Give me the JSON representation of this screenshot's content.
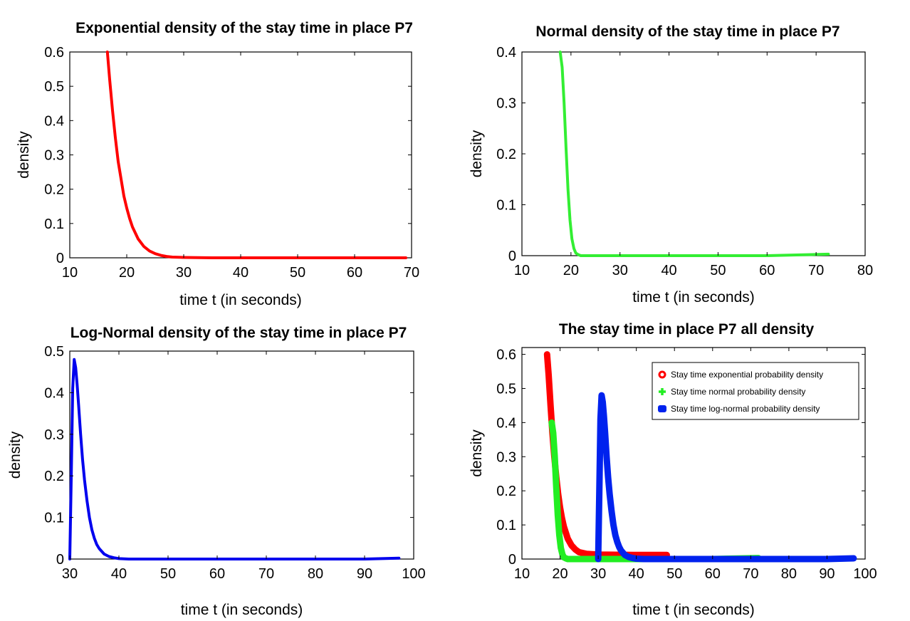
{
  "chart_data": [
    {
      "type": "line",
      "title": "Exponential density of the stay time in place P7",
      "xlabel": "time t (in seconds)",
      "ylabel": "density",
      "xlim": [
        10,
        70
      ],
      "ylim": [
        0,
        0.6
      ],
      "xticks": [
        "10",
        "20",
        "30",
        "40",
        "50",
        "60",
        "70"
      ],
      "yticks": [
        "0",
        "0.1",
        "0.2",
        "0.3",
        "0.4",
        "0.5",
        "0.6"
      ],
      "grid": false,
      "series": [
        {
          "color": "#ff0000",
          "x": [
            16.6,
            17.0,
            17.5,
            18.0,
            18.5,
            19.0,
            19.5,
            20.0,
            20.5,
            21.0,
            22.0,
            23.0,
            24.0,
            25.0,
            26.0,
            27.0,
            28.0,
            30.0,
            35.0,
            40.0,
            50.0,
            60.0,
            69.0
          ],
          "y": [
            0.6,
            0.52,
            0.43,
            0.35,
            0.28,
            0.23,
            0.18,
            0.145,
            0.115,
            0.09,
            0.055,
            0.033,
            0.02,
            0.012,
            0.007,
            0.004,
            0.002,
            0.001,
            0.0,
            0.0,
            0.0,
            0.0,
            0.0
          ]
        }
      ]
    },
    {
      "type": "line",
      "title": "Normal density of the stay time in place P7",
      "xlabel": "time t (in seconds)",
      "ylabel": "density",
      "xlim": [
        10,
        80
      ],
      "ylim": [
        0,
        0.4
      ],
      "xticks": [
        "10",
        "20",
        "30",
        "40",
        "50",
        "60",
        "70",
        "80"
      ],
      "yticks": [
        "0",
        "0.1",
        "0.2",
        "0.3",
        "0.4"
      ],
      "grid": false,
      "series": [
        {
          "color": "#33ee33",
          "x": [
            17.8,
            18.2,
            18.6,
            19.0,
            19.4,
            19.8,
            20.2,
            20.6,
            21.0,
            21.5,
            22.0,
            25.0,
            30.0,
            40.0,
            50.0,
            60.0,
            72.5
          ],
          "y": [
            0.4,
            0.37,
            0.3,
            0.21,
            0.13,
            0.07,
            0.033,
            0.014,
            0.005,
            0.002,
            0.0,
            0.0,
            0.0,
            0.0,
            0.0,
            0.0,
            0.003
          ]
        }
      ]
    },
    {
      "type": "line",
      "title": "Log-Normal density of the stay time in place P7",
      "xlabel": "time t (in seconds)",
      "ylabel": "density",
      "xlim": [
        30,
        100
      ],
      "ylim": [
        0,
        0.5
      ],
      "xticks": [
        "30",
        "40",
        "50",
        "60",
        "70",
        "80",
        "90",
        "100"
      ],
      "yticks": [
        "0",
        "0.1",
        "0.2",
        "0.3",
        "0.4",
        "0.5"
      ],
      "grid": false,
      "series": [
        {
          "color": "#0000ee",
          "x": [
            30.0,
            30.3,
            30.6,
            30.9,
            31.2,
            31.5,
            31.8,
            32.2,
            32.6,
            33.0,
            33.5,
            34.0,
            34.5,
            35.0,
            35.5,
            36.0,
            37.0,
            38.0,
            39.0,
            40.0,
            42.0,
            50.0,
            60.0,
            70.0,
            80.0,
            90.0,
            97.0
          ],
          "y": [
            0.0,
            0.2,
            0.41,
            0.48,
            0.46,
            0.42,
            0.37,
            0.3,
            0.24,
            0.19,
            0.14,
            0.1,
            0.07,
            0.05,
            0.035,
            0.025,
            0.012,
            0.006,
            0.003,
            0.001,
            0.0,
            0.0,
            0.0,
            0.0,
            0.0,
            0.0,
            0.002
          ]
        }
      ]
    },
    {
      "type": "line",
      "title": "The stay time in place P7 all density",
      "xlabel": "time t (in seconds)",
      "ylabel": "density",
      "xlim": [
        10,
        100
      ],
      "ylim": [
        0,
        0.62
      ],
      "xticks": [
        "10",
        "20",
        "30",
        "40",
        "50",
        "60",
        "70",
        "80",
        "90",
        "100"
      ],
      "yticks": [
        "0",
        "0.1",
        "0.2",
        "0.3",
        "0.4",
        "0.5",
        "0.6"
      ],
      "grid": false,
      "legend": "top-right",
      "series": [
        {
          "name": "Stay time exponential probability density",
          "color": "#ff0000",
          "x": [
            16.6,
            17.0,
            17.5,
            18.0,
            18.5,
            19.0,
            19.5,
            20.0,
            20.5,
            21.0,
            22.0,
            23.0,
            24.0,
            25.0,
            27.0,
            30.0,
            40.0,
            48.0
          ],
          "y": [
            0.6,
            0.54,
            0.45,
            0.37,
            0.3,
            0.24,
            0.19,
            0.15,
            0.12,
            0.095,
            0.06,
            0.04,
            0.028,
            0.02,
            0.015,
            0.013,
            0.012,
            0.012
          ]
        },
        {
          "name": "Stay time normal probability density",
          "color": "#22ee22",
          "x": [
            17.8,
            18.2,
            18.6,
            19.0,
            19.4,
            19.8,
            20.2,
            20.6,
            21.0,
            21.5,
            22.0,
            25.0,
            30.0,
            40.0,
            50.0,
            60.0,
            72.0
          ],
          "y": [
            0.4,
            0.37,
            0.3,
            0.21,
            0.13,
            0.07,
            0.033,
            0.014,
            0.005,
            0.002,
            0.0,
            0.0,
            0.0,
            0.0,
            0.0,
            0.0,
            0.003
          ]
        },
        {
          "name": "Stay time log-normal probability density",
          "color": "#0022ee",
          "x": [
            30.0,
            30.3,
            30.6,
            30.9,
            31.2,
            31.5,
            31.8,
            32.2,
            32.6,
            33.0,
            33.5,
            34.0,
            34.5,
            35.0,
            35.5,
            36.0,
            37.0,
            38.0,
            39.0,
            40.0,
            42.0,
            50.0,
            60.0,
            70.0,
            80.0,
            90.0,
            97.0
          ],
          "y": [
            0.0,
            0.2,
            0.41,
            0.48,
            0.46,
            0.42,
            0.37,
            0.3,
            0.24,
            0.19,
            0.14,
            0.1,
            0.07,
            0.05,
            0.035,
            0.025,
            0.012,
            0.006,
            0.003,
            0.001,
            0.0,
            0.0,
            0.0,
            0.0,
            0.0,
            0.0,
            0.002
          ]
        }
      ]
    }
  ]
}
